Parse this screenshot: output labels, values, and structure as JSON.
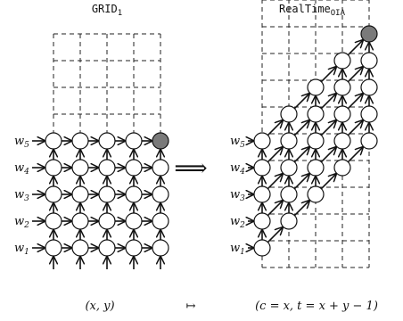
{
  "left": {
    "title_main": "GRID",
    "title_sub": "1",
    "rows": [
      {
        "label": "w",
        "sub": "5"
      },
      {
        "label": "w",
        "sub": "4"
      },
      {
        "label": "w",
        "sub": "3"
      },
      {
        "label": "w",
        "sub": "2"
      },
      {
        "label": "w",
        "sub": "1"
      }
    ]
  },
  "right": {
    "title_main": "RealTime",
    "title_sub": "OIA",
    "rows": [
      {
        "label": "w",
        "sub": "5"
      },
      {
        "label": "w",
        "sub": "4"
      },
      {
        "label": "w",
        "sub": "3"
      },
      {
        "label": "w",
        "sub": "2"
      },
      {
        "label": "w",
        "sub": "1"
      }
    ]
  },
  "arrow_symbol": "⟹",
  "mapping": {
    "left": "(x, y)",
    "arrow": "↦",
    "right": "(c = x, t = x + y − 1)"
  },
  "colors": {
    "highlight": "#7a7a7a"
  }
}
